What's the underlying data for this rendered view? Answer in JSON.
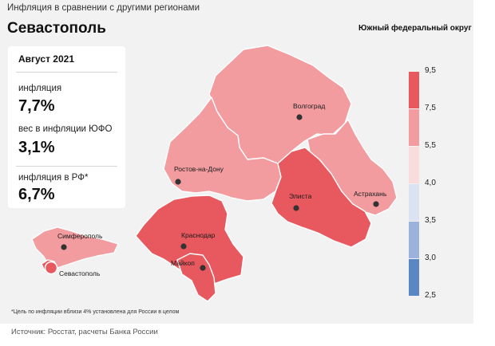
{
  "header": {
    "subtitle": "Инфляция  в сравнении  с другими  регионами",
    "title": "Севастополь",
    "district": "Южный федеральный округ"
  },
  "infobox": {
    "month": "Август 2021",
    "inflation_label": "инфляция",
    "inflation_value": "7,7%",
    "weight_label": "вес в инфляции  ЮФО",
    "weight_value": "3,1%",
    "russia_label": "инфляция  в РФ*",
    "russia_value": "6,7%"
  },
  "legend": {
    "bins": [
      {
        "from": 7.5,
        "to": 9.5,
        "color": "#e8585f"
      },
      {
        "from": 5.5,
        "to": 7.5,
        "color": "#f29ca0"
      },
      {
        "from": 4.0,
        "to": 5.5,
        "color": "#f9dcdd"
      },
      {
        "from": 3.5,
        "to": 4.0,
        "color": "#dbe3f2"
      },
      {
        "from": 3.0,
        "to": 3.5,
        "color": "#9ab2dc"
      },
      {
        "from": 2.5,
        "to": 3.0,
        "color": "#5a86c4"
      }
    ],
    "labels": [
      "9,5",
      "7,5",
      "5,5",
      "4,0",
      "3,5",
      "3,0",
      "2,5"
    ]
  },
  "map": {
    "colors": {
      "high": "#e8585f",
      "mid": "#f29ca0",
      "border": "#ffffff",
      "dot": "#333333",
      "sevastopol": "#e8585f"
    },
    "cities": {
      "volgograd": "Волгоград",
      "rostov": "Ростов-на-Дону",
      "elista": "Элиста",
      "astrakhan": "Астрахань",
      "simferopol": "Симферополь",
      "krasnodar": "Краснодар",
      "maykop": "Майкоп",
      "sevastopol": "Севастополь"
    }
  },
  "footnote": "*Цель по инфляции вблизи 4% установлена для России в целом",
  "source": "Источник: Росстат, расчеты Банка России"
}
